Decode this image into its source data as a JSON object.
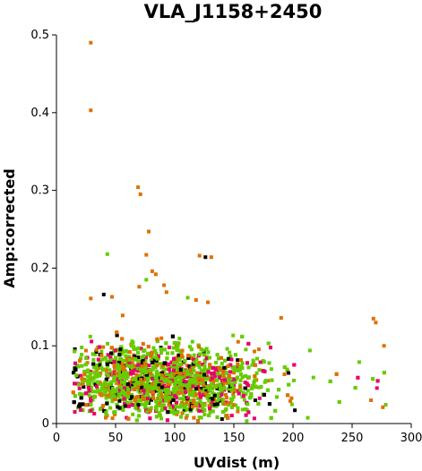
{
  "chart_data": {
    "type": "scatter",
    "title": "VLA_J1158+2450",
    "xlabel": "UVdist (m)",
    "ylabel": "Amp:corrected",
    "xlim": [
      0,
      300
    ],
    "ylim": [
      0,
      0.5
    ],
    "x_ticks": [
      0,
      50,
      100,
      150,
      200,
      250,
      300
    ],
    "y_ticks": [
      0,
      0.1,
      0.2,
      0.3,
      0.4,
      0.5
    ],
    "x_tick_labels": [
      "0",
      "50",
      "100",
      "150",
      "200",
      "250",
      "300"
    ],
    "y_tick_labels": [
      "0",
      "0.1",
      "0.2",
      "0.3",
      "0.4",
      "0.5"
    ],
    "grid": false,
    "legend": "none",
    "marker": "square",
    "series_colors": [
      "#000000",
      "#e8006a",
      "#e07000",
      "#66cc00"
    ],
    "notable_points": [
      {
        "x": 29,
        "y": 0.49
      },
      {
        "x": 29,
        "y": 0.403
      },
      {
        "x": 69,
        "y": 0.304
      },
      {
        "x": 71,
        "y": 0.295
      },
      {
        "x": 78,
        "y": 0.247
      },
      {
        "x": 43,
        "y": 0.218
      },
      {
        "x": 76,
        "y": 0.217
      },
      {
        "x": 121,
        "y": 0.216
      },
      {
        "x": 126,
        "y": 0.214
      },
      {
        "x": 131,
        "y": 0.214
      },
      {
        "x": 81,
        "y": 0.196
      },
      {
        "x": 84,
        "y": 0.192
      },
      {
        "x": 76,
        "y": 0.185
      },
      {
        "x": 70,
        "y": 0.176
      },
      {
        "x": 91,
        "y": 0.178
      },
      {
        "x": 93,
        "y": 0.169
      },
      {
        "x": 29,
        "y": 0.161
      },
      {
        "x": 40,
        "y": 0.166
      },
      {
        "x": 47,
        "y": 0.163
      },
      {
        "x": 111,
        "y": 0.162
      },
      {
        "x": 118,
        "y": 0.159
      },
      {
        "x": 128,
        "y": 0.156
      },
      {
        "x": 56,
        "y": 0.139
      },
      {
        "x": 268,
        "y": 0.135
      },
      {
        "x": 190,
        "y": 0.136
      },
      {
        "x": 270,
        "y": 0.13
      },
      {
        "x": 256,
        "y": 0.079
      },
      {
        "x": 266,
        "y": 0.03
      },
      {
        "x": 277,
        "y": 0.1
      },
      {
        "x": 276,
        "y": 0.021
      }
    ],
    "cloud": {
      "x_range": [
        14,
        280
      ],
      "y_range": [
        0.003,
        0.12
      ],
      "density_peak_x": 90,
      "n_points": 2600
    }
  }
}
